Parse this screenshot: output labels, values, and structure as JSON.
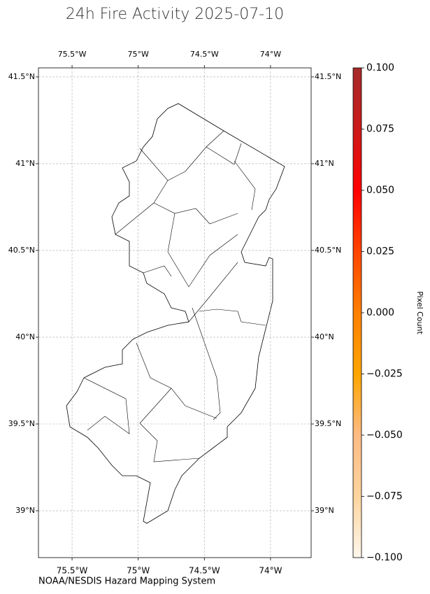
{
  "chart_data": {
    "type": "map",
    "title": "24h Fire Activity 2025-07-10",
    "credit": "NOAA/NESDIS Hazard Mapping System",
    "xlim": [
      -75.754,
      -73.693
    ],
    "ylim": [
      38.73,
      41.552
    ],
    "xticks": [
      {
        "value": -75.5,
        "label": "75.5°W"
      },
      {
        "value": -75,
        "label": "75°W"
      },
      {
        "value": -74.5,
        "label": "74.5°W"
      },
      {
        "value": -74,
        "label": "74°W"
      }
    ],
    "yticks": [
      {
        "value": 39,
        "label": "39°N"
      },
      {
        "value": 39.5,
        "label": "39.5°N"
      },
      {
        "value": 40,
        "label": "40°N"
      },
      {
        "value": 40.5,
        "label": "40.5°N"
      },
      {
        "value": 41,
        "label": "41°N"
      },
      {
        "value": 41.5,
        "label": "41.5°N"
      }
    ],
    "grid": true,
    "colorbar": {
      "label": "Pixel Count",
      "clim": [
        -0.1,
        0.1
      ],
      "colormap": [
        "#fff7ec",
        "#fdd49e",
        "#fdbb84",
        "#ffa500",
        "#ff7f00",
        "#ff4500",
        "#ff0000",
        "#cc1a1a",
        "#a52a2a"
      ],
      "ticks": [
        {
          "value": -0.1,
          "label": "−0.100"
        },
        {
          "value": -0.075,
          "label": "−0.075"
        },
        {
          "value": -0.05,
          "label": "−0.050"
        },
        {
          "value": -0.025,
          "label": "−0.025"
        },
        {
          "value": 0,
          "label": "0.000"
        },
        {
          "value": 0.025,
          "label": "0.025"
        },
        {
          "value": 0.05,
          "label": "0.050"
        },
        {
          "value": 0.075,
          "label": "0.075"
        },
        {
          "value": 0.1,
          "label": "0.100"
        }
      ]
    }
  }
}
